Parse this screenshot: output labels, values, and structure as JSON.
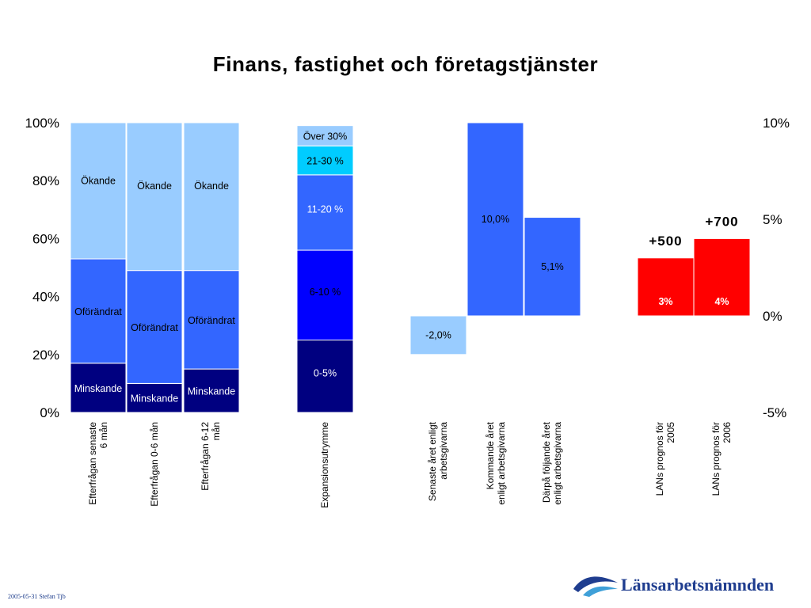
{
  "title": "Finans, fastighet och företagstjänster",
  "left_axis": {
    "ticks": [
      "100%",
      "80%",
      "60%",
      "40%",
      "20%",
      "0%"
    ],
    "ylim": [
      0,
      100
    ]
  },
  "right_axis": {
    "ticks": [
      "10%",
      "5%",
      "0%",
      "-5%"
    ],
    "ylim": [
      -5,
      10
    ]
  },
  "colors": {
    "light_blue": "#99ccff",
    "mid_blue": "#3366ff",
    "dark_navy": "#000080",
    "royal_blue": "#0000ff",
    "cyan": "#00ccff",
    "red": "#ff0000"
  },
  "chart_data": [
    {
      "type": "bar",
      "stacked": true,
      "categories": [
        "Efterfrågan senaste 6 mån",
        "Efterfrågan 0-6 mån",
        "Efterfrågan 6-12 mån"
      ],
      "series": [
        {
          "name": "Minskande",
          "values": [
            17,
            10,
            15
          ]
        },
        {
          "name": "Oförändrat",
          "values": [
            36,
            39,
            34
          ]
        },
        {
          "name": "Ökande",
          "values": [
            47,
            51,
            51
          ]
        }
      ],
      "ylim": [
        0,
        100
      ]
    },
    {
      "type": "bar",
      "stacked": true,
      "categories": [
        "Expansionsutrymme"
      ],
      "series": [
        {
          "name": "0-5%",
          "values": [
            25
          ]
        },
        {
          "name": "6-10 %",
          "values": [
            31
          ]
        },
        {
          "name": "11-20 %",
          "values": [
            26
          ]
        },
        {
          "name": "21-30 %",
          "values": [
            10
          ]
        },
        {
          "name": "Över 30%",
          "values": [
            7
          ]
        }
      ],
      "ylim": [
        0,
        100
      ]
    },
    {
      "type": "bar",
      "categories": [
        "Senaste året enligt arbetsgivarna",
        "Kommande året enligt arbetsgivarna",
        "Därpå följande året enligt arbetsgivarna"
      ],
      "values": [
        -2.0,
        10.0,
        5.1
      ],
      "data_labels": [
        "-2,0%",
        "10,0%",
        "5,1%"
      ],
      "ylim": [
        -5,
        10
      ]
    },
    {
      "type": "bar",
      "categories": [
        "LANs prognos för 2005",
        "LANs prognos för 2006"
      ],
      "values": [
        3,
        4
      ],
      "data_labels": [
        "3%",
        "4%"
      ],
      "annotations": [
        "+500",
        "+700"
      ],
      "ylim": [
        -5,
        10
      ]
    }
  ],
  "category_labels": {
    "efter_senaste": [
      "Efterfrågan senaste",
      "6 mån"
    ],
    "efter_06": [
      "Efterfrågan 0-6 mån"
    ],
    "efter_612": [
      "Efterfrågan 6-12",
      "mån"
    ],
    "expansion": [
      "Expansionsutrymme"
    ],
    "senaste": [
      "Senaste året enligt",
      "arbetsgivarna"
    ],
    "kommande": [
      "Kommande året",
      "enligt arbetsgivarna"
    ],
    "darpa": [
      "Därpå följande året",
      "enligt arbetsgivarna"
    ],
    "lan2005": [
      "LANs prognos för",
      "2005"
    ],
    "lan2006": [
      "LANs prognos för",
      "2006"
    ]
  },
  "footer": "2005-05-31 Stefan Tjb",
  "logo": {
    "text": "Länsarbetsnämnden",
    "icon": "wave-logo-icon"
  }
}
